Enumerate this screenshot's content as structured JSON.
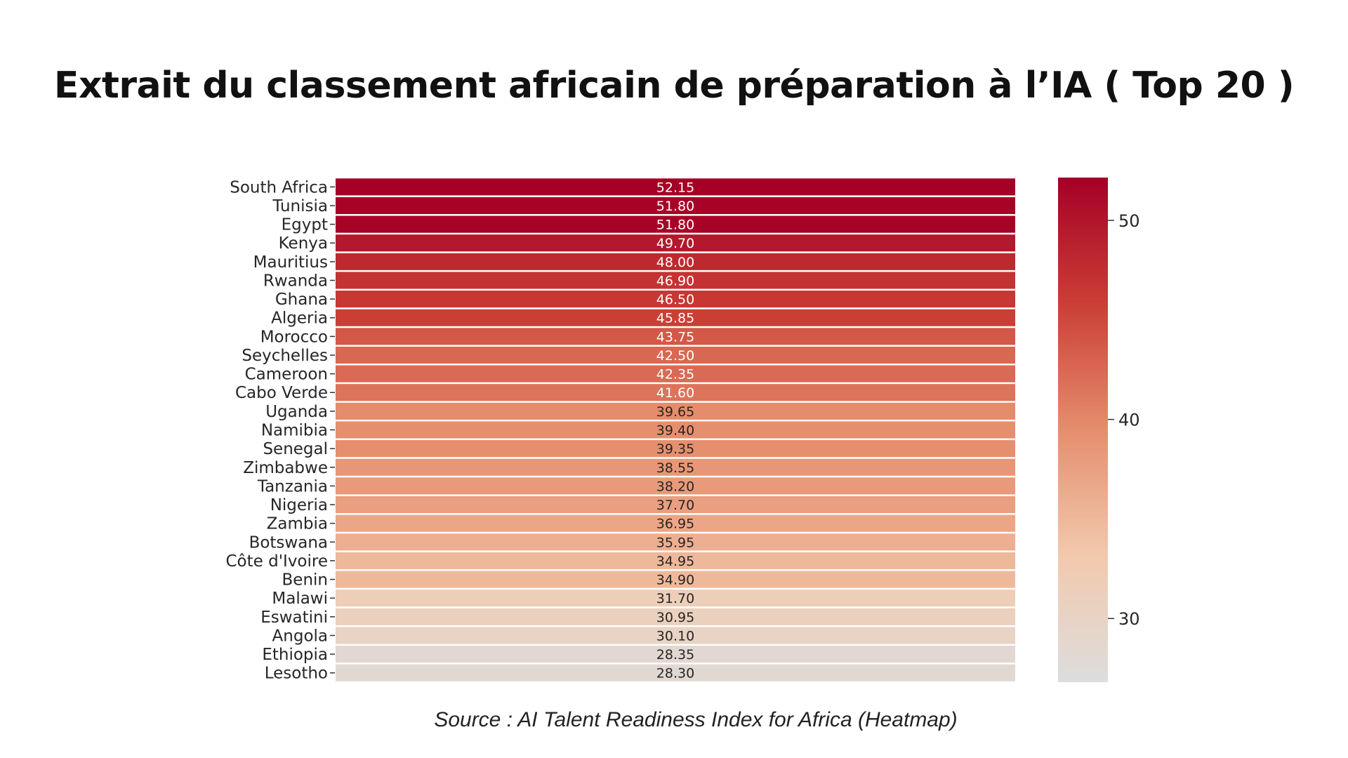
{
  "slide": {
    "title": "Extrait du classement africain de préparation à l’IA ( Top 20 )",
    "source": "Source : AI Talent Readiness Index for Africa (Heatmap)"
  },
  "chart_data": {
    "type": "heatmap",
    "categories": [
      "South Africa",
      "Tunisia",
      "Egypt",
      "Kenya",
      "Mauritius",
      "Rwanda",
      "Ghana",
      "Algeria",
      "Morocco",
      "Seychelles",
      "Cameroon",
      "Cabo Verde",
      "Uganda",
      "Namibia",
      "Senegal",
      "Zimbabwe",
      "Tanzania",
      "Nigeria",
      "Zambia",
      "Botswana",
      "Côte d'Ivoire",
      "Benin",
      "Malawi",
      "Eswatini",
      "Angola",
      "Ethiopia",
      "Lesotho"
    ],
    "values": [
      52.15,
      51.8,
      51.8,
      49.7,
      48.0,
      46.9,
      46.5,
      45.85,
      43.75,
      42.5,
      42.35,
      41.6,
      39.65,
      39.4,
      39.35,
      38.55,
      38.2,
      37.7,
      36.95,
      35.95,
      34.95,
      34.9,
      31.7,
      30.95,
      30.1,
      28.35,
      28.3
    ],
    "cell_labels": [
      "52.15",
      "51.80",
      "51.80",
      "49.70",
      "48.00",
      "46.90",
      "46.50",
      "45.85",
      "43.75",
      "42.50",
      "42.35",
      "41.60",
      "39.65",
      "39.40",
      "39.35",
      "38.55",
      "38.20",
      "37.70",
      "36.95",
      "35.95",
      "34.95",
      "34.90",
      "31.70",
      "30.95",
      "30.10",
      "28.35",
      "28.30"
    ],
    "colorbar": {
      "range": [
        26.8,
        52.15
      ],
      "ticks": [
        30,
        40,
        50
      ],
      "tick_labels": [
        "30",
        "40",
        "50"
      ],
      "colors": [
        "#dddddd",
        "#f2c9ad",
        "#e58e6e",
        "#cb3e36",
        "#a50026"
      ]
    }
  }
}
